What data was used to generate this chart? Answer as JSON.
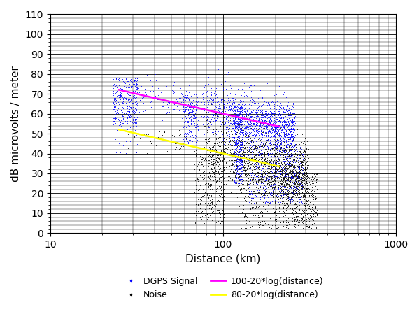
{
  "xlabel": "Distance (km)",
  "ylabel": "dB microvolts / meter",
  "xlim": [
    10,
    1000
  ],
  "ylim": [
    0,
    110
  ],
  "yticks": [
    0,
    10,
    20,
    30,
    40,
    50,
    60,
    70,
    80,
    90,
    100,
    110
  ],
  "signal_color": "#0000FF",
  "noise_color": "#000000",
  "line1_color": "#FF00FF",
  "line2_color": "#FFFF00",
  "line1_label": "100-20*log(distance)",
  "line2_label": "80-20*log(distance)",
  "signal_label": "DGPS Signal",
  "noise_label": "Noise",
  "line_xmin": 25,
  "line_xmax": 210,
  "marker_size": 1.5,
  "xlabel_fontsize": 11,
  "ylabel_fontsize": 11,
  "legend_fontsize": 9,
  "line_width": 1.8,
  "bg_color": "#f0f0f0"
}
